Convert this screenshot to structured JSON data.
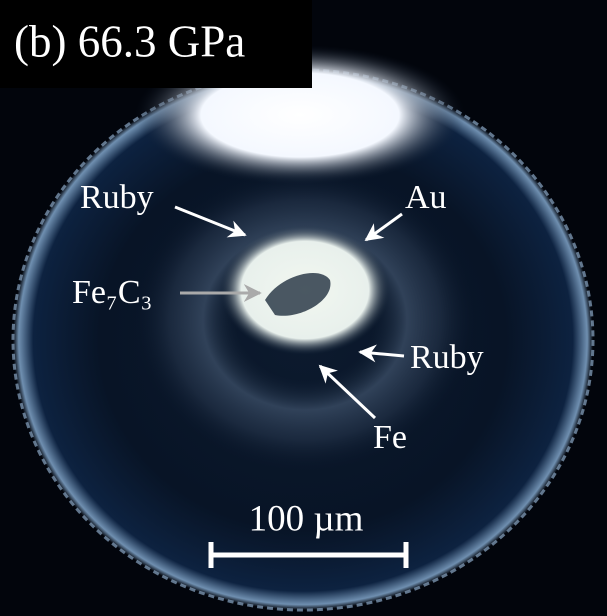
{
  "panel_label": "(b) 66.3 GPa",
  "annotations": [
    {
      "label": "Ruby"
    },
    {
      "label": "Au"
    },
    {
      "label": "Fe₇C₃"
    },
    {
      "label": "Ruby"
    },
    {
      "label": "Fe"
    }
  ],
  "scale_bar": {
    "label": "100 µm"
  }
}
